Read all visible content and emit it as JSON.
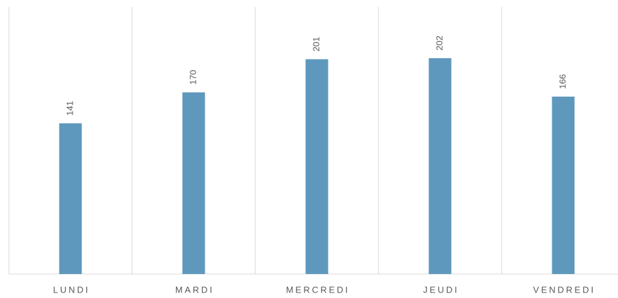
{
  "chart_data": {
    "type": "bar",
    "categories": [
      "LUNDI",
      "MARDI",
      "MERCREDI",
      "JEUDI",
      "VENDREDI"
    ],
    "values": [
      141,
      170,
      201,
      202,
      166
    ],
    "color": "#5f98bd",
    "ylim": [
      0,
      250
    ]
  }
}
